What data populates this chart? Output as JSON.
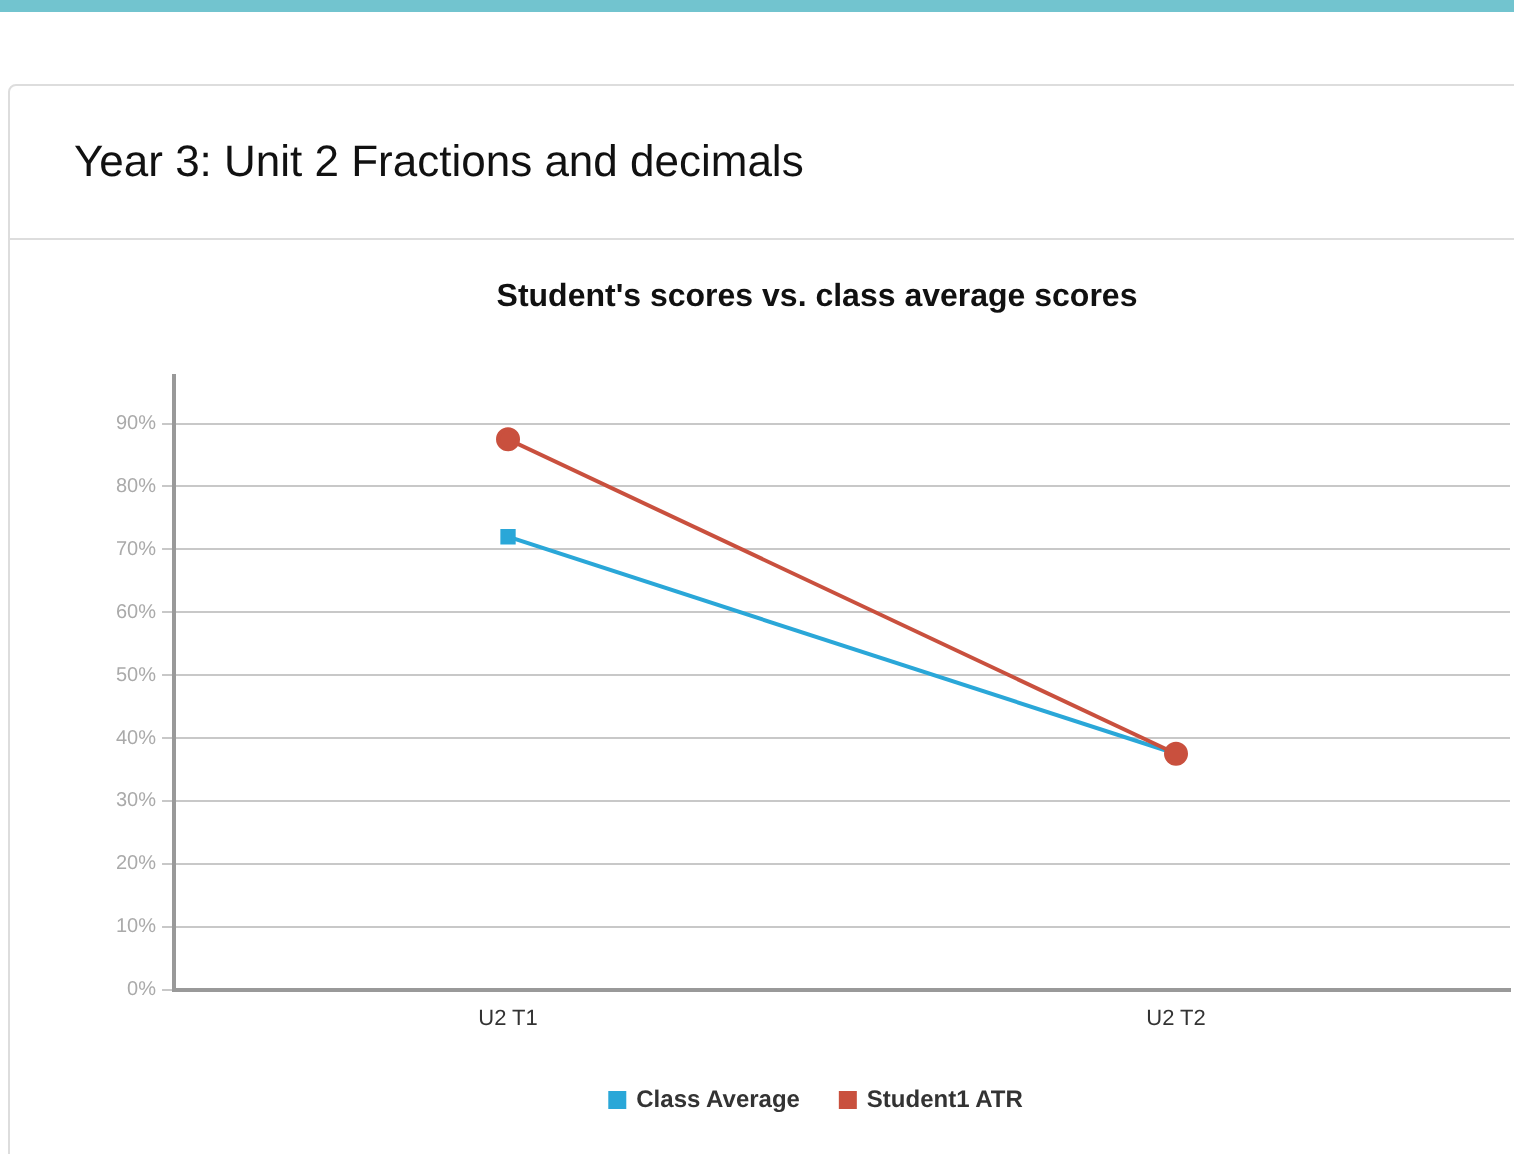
{
  "chart_data": {
    "type": "line",
    "title": "Year 3: Unit 2 Fractions and decimals",
    "subtitle": "Student's scores vs. class average scores",
    "categories": [
      "U2 T1",
      "U2 T2"
    ],
    "series": [
      {
        "name": "Class Average",
        "color": "#2aa7d8",
        "values": [
          72,
          37.5
        ],
        "marker": "square"
      },
      {
        "name": "Student1 ATR",
        "color": "#c9503e",
        "values": [
          87.5,
          37.5
        ],
        "marker": "circle"
      }
    ],
    "ylim": [
      0,
      97.5
    ],
    "yticks": [
      {
        "value": 0,
        "label": "0%"
      },
      {
        "value": 10,
        "label": "10%"
      },
      {
        "value": 20,
        "label": "20%"
      },
      {
        "value": 30,
        "label": "30%"
      },
      {
        "value": 40,
        "label": "40%"
      },
      {
        "value": 50,
        "label": "50%"
      },
      {
        "value": 60,
        "label": "60%"
      },
      {
        "value": 70,
        "label": "70%"
      },
      {
        "value": 80,
        "label": "80%"
      },
      {
        "value": 90,
        "label": "90%"
      }
    ],
    "grid": "y",
    "legend": "bottom"
  }
}
